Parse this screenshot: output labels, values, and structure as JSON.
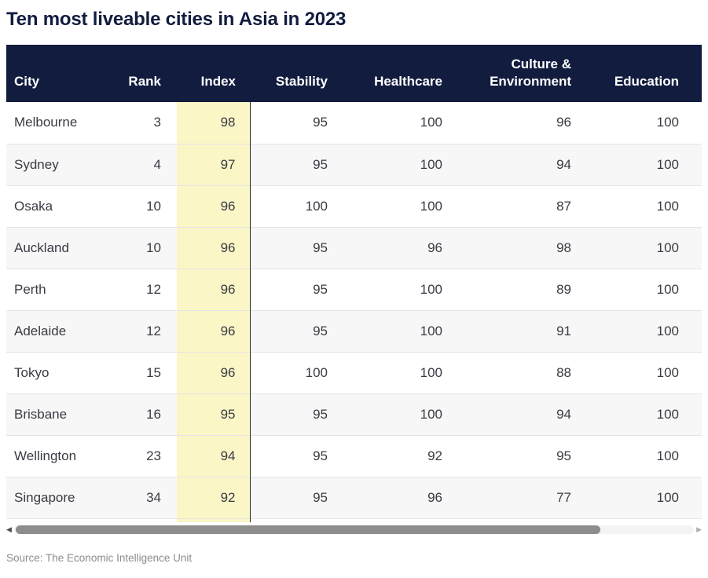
{
  "title": "Ten most liveable cities in Asia in 2023",
  "source": "Source: The Economic Intelligence Unit",
  "colors": {
    "header_bg": "#121c3f",
    "title_text": "#121c3f",
    "index_highlight": "#faf6c6",
    "row_alt": "#f7f7f7",
    "column_divider": "#2e2e2e",
    "body_text": "#3a3a44",
    "source_text": "#8c8c8c",
    "scrollbar_thumb": "#8d8d8d"
  },
  "scrollbar": {
    "left_arrow_glyph": "◀",
    "right_arrow_glyph": "▶"
  },
  "chart_data": {
    "type": "table",
    "title": "Ten most liveable cities in Asia in 2023",
    "columns": [
      "City",
      "Rank",
      "Index",
      "Stability",
      "Healthcare",
      "Culture & Environment",
      "Education"
    ],
    "highlighted_column": "Index",
    "rows": [
      [
        "Melbourne",
        3,
        98,
        95,
        100,
        96,
        100
      ],
      [
        "Sydney",
        4,
        97,
        95,
        100,
        94,
        100
      ],
      [
        "Osaka",
        10,
        96,
        100,
        100,
        87,
        100
      ],
      [
        "Auckland",
        10,
        96,
        95,
        96,
        98,
        100
      ],
      [
        "Perth",
        12,
        96,
        95,
        100,
        89,
        100
      ],
      [
        "Adelaide",
        12,
        96,
        95,
        100,
        91,
        100
      ],
      [
        "Tokyo",
        15,
        96,
        100,
        100,
        88,
        100
      ],
      [
        "Brisbane",
        16,
        95,
        95,
        100,
        94,
        100
      ],
      [
        "Wellington",
        23,
        94,
        95,
        92,
        95,
        100
      ],
      [
        "Singapore",
        34,
        92,
        95,
        96,
        77,
        100
      ]
    ],
    "source": "Source: The Economic Intelligence Unit"
  }
}
